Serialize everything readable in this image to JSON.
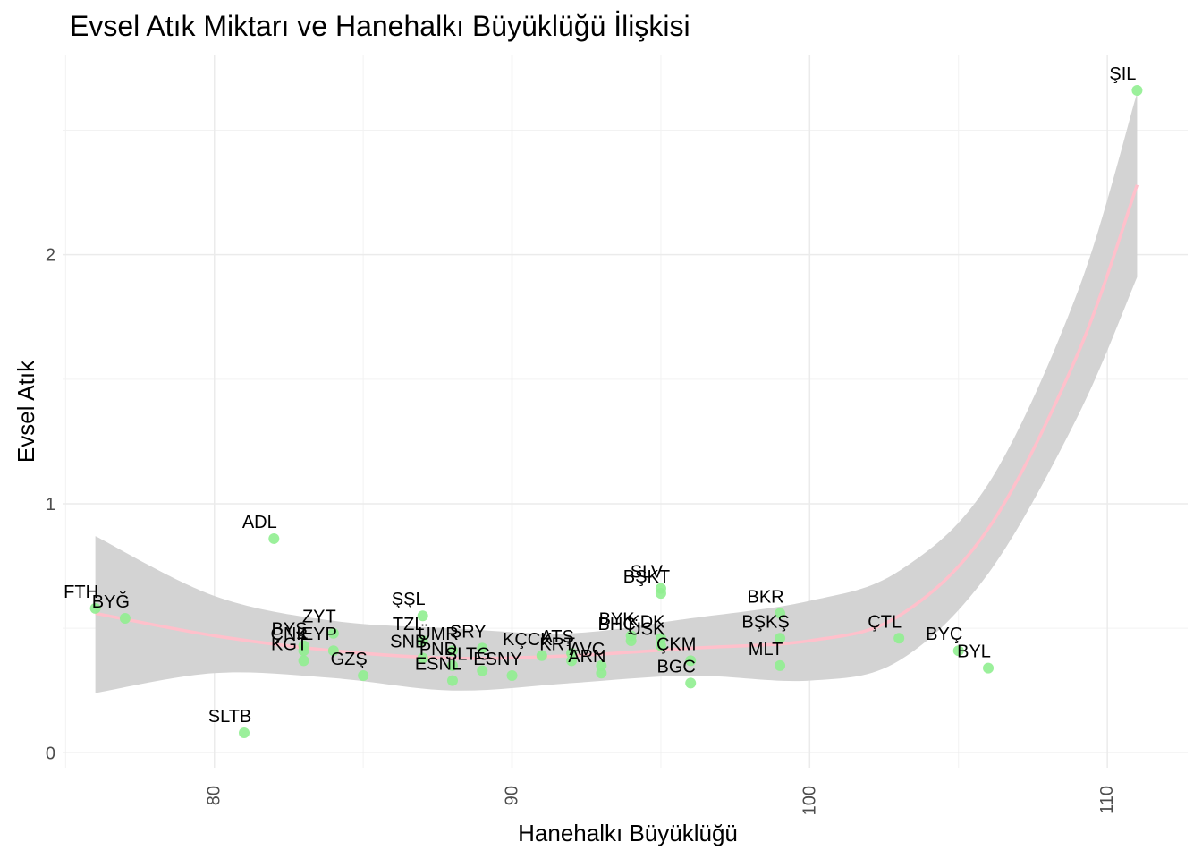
{
  "chart_data": {
    "type": "scatter",
    "title": "Evsel Atık Miktarı ve Hanehalkı Büyüklüğü İlişkisi",
    "xlabel": "Hanehalkı Büyüklüğü",
    "ylabel": "Evsel Atık",
    "xlim": [
      74.9,
      112.7
    ],
    "ylim": [
      -0.06,
      2.8
    ],
    "x_ticks": [
      "80",
      "90",
      "100",
      "110"
    ],
    "y_ticks": [
      "0",
      "1",
      "2"
    ],
    "x_tick_values": [
      80,
      90,
      100,
      110
    ],
    "y_tick_values": [
      0,
      1,
      2
    ],
    "grid": true,
    "point_color": "#90ee90",
    "smooth_color": "#ffc0cb",
    "band_color": "#d3d3d3",
    "points": [
      {
        "label": "ŞIL",
        "x": 111,
        "y": 2.66
      },
      {
        "label": "ADL",
        "x": 82,
        "y": 0.86
      },
      {
        "label": "FTH",
        "x": 76,
        "y": 0.58
      },
      {
        "label": "BYĞ",
        "x": 77,
        "y": 0.54
      },
      {
        "label": "SLTB",
        "x": 81,
        "y": 0.08
      },
      {
        "label": "BYŞ",
        "x": 83,
        "y": 0.43
      },
      {
        "label": "ZYT",
        "x": 84,
        "y": 0.48
      },
      {
        "label": "KGT",
        "x": 83,
        "y": 0.37
      },
      {
        "label": "ÇNK",
        "x": 83,
        "y": 0.41
      },
      {
        "label": "EYP",
        "x": 84,
        "y": 0.41
      },
      {
        "label": "GZŞ",
        "x": 85,
        "y": 0.31
      },
      {
        "label": "ŞŞL",
        "x": 87,
        "y": 0.55
      },
      {
        "label": "TZL",
        "x": 87,
        "y": 0.45
      },
      {
        "label": "ÜMR",
        "x": 88,
        "y": 0.41
      },
      {
        "label": "SNB",
        "x": 87,
        "y": 0.38
      },
      {
        "label": "ESNL",
        "x": 88,
        "y": 0.29
      },
      {
        "label": "PND",
        "x": 88,
        "y": 0.35
      },
      {
        "label": "SRY",
        "x": 89,
        "y": 0.42
      },
      {
        "label": "SLTG",
        "x": 89,
        "y": 0.33
      },
      {
        "label": "ESNY",
        "x": 90,
        "y": 0.31
      },
      {
        "label": "KÇCK",
        "x": 91,
        "y": 0.39
      },
      {
        "label": "ATŞ",
        "x": 92,
        "y": 0.4
      },
      {
        "label": "KRT",
        "x": 92,
        "y": 0.37
      },
      {
        "label": "ARN",
        "x": 93,
        "y": 0.32
      },
      {
        "label": "AVC",
        "x": 93,
        "y": 0.35
      },
      {
        "label": "BYK",
        "x": 94,
        "y": 0.47
      },
      {
        "label": "BHÇ",
        "x": 94,
        "y": 0.45
      },
      {
        "label": "KDK",
        "x": 95,
        "y": 0.46
      },
      {
        "label": "ÜSK",
        "x": 95,
        "y": 0.43
      },
      {
        "label": "SLV",
        "x": 95,
        "y": 0.66
      },
      {
        "label": "BŞKT",
        "x": 95,
        "y": 0.64
      },
      {
        "label": "ÇKM",
        "x": 96,
        "y": 0.37
      },
      {
        "label": "BGC",
        "x": 96,
        "y": 0.28
      },
      {
        "label": "BKR",
        "x": 99,
        "y": 0.56
      },
      {
        "label": "BŞKŞ",
        "x": 99,
        "y": 0.46
      },
      {
        "label": "MLT",
        "x": 99,
        "y": 0.35
      },
      {
        "label": "ÇTL",
        "x": 103,
        "y": 0.46
      },
      {
        "label": "BYÇ",
        "x": 105,
        "y": 0.41
      },
      {
        "label": "BYL",
        "x": 106,
        "y": 0.34
      }
    ],
    "smooth": {
      "x": [
        76,
        80,
        84,
        88,
        92,
        96,
        100,
        103,
        106,
        109,
        111
      ],
      "y": [
        0.56,
        0.47,
        0.41,
        0.38,
        0.39,
        0.42,
        0.45,
        0.55,
        0.9,
        1.6,
        2.28
      ],
      "lower": [
        0.24,
        0.32,
        0.3,
        0.25,
        0.28,
        0.31,
        0.29,
        0.37,
        0.72,
        1.35,
        1.91
      ],
      "upper": [
        0.87,
        0.63,
        0.53,
        0.5,
        0.48,
        0.54,
        0.61,
        0.73,
        1.08,
        1.85,
        2.65
      ]
    }
  }
}
